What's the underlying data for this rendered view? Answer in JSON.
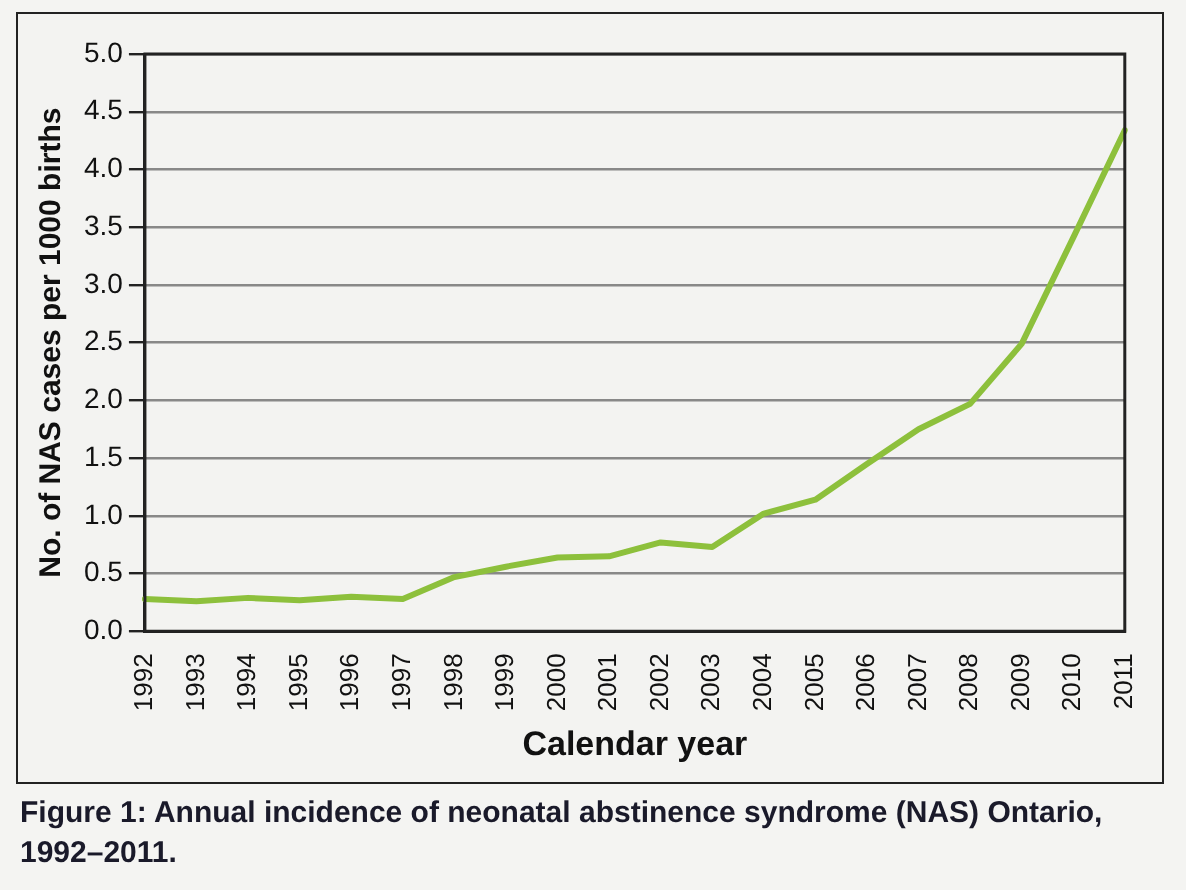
{
  "chart_data": {
    "type": "line",
    "xlabel": "Calendar year",
    "ylabel": "No. of NAS cases per 1000 births",
    "categories": [
      "1992",
      "1993",
      "1994",
      "1995",
      "1996",
      "1997",
      "1998",
      "1999",
      "2000",
      "2001",
      "2002",
      "2003",
      "2004",
      "2005",
      "2006",
      "2007",
      "2008",
      "2009",
      "2010",
      "2011"
    ],
    "series": [
      {
        "color": "#8dc03c",
        "values": [
          0.28,
          0.26,
          0.29,
          0.27,
          0.3,
          0.28,
          0.47,
          0.56,
          0.64,
          0.65,
          0.77,
          0.73,
          1.02,
          1.14,
          1.45,
          1.75,
          1.97,
          2.49,
          3.41,
          4.34
        ]
      }
    ],
    "ylim": [
      0,
      5
    ],
    "yticks": [
      {
        "value": 0,
        "label": "0.0"
      },
      {
        "value": 0.5,
        "label": "0.5"
      },
      {
        "value": 1,
        "label": "1.0"
      },
      {
        "value": 1.5,
        "label": "1.5"
      },
      {
        "value": 2,
        "label": "2.0"
      },
      {
        "value": 2.5,
        "label": "2.5"
      },
      {
        "value": 3,
        "label": "3.0"
      },
      {
        "value": 3.5,
        "label": "3.5"
      },
      {
        "value": 4,
        "label": "4.0"
      },
      {
        "value": 4.5,
        "label": "4.5"
      },
      {
        "value": 5,
        "label": "5.0"
      }
    ],
    "grid": "y",
    "legend": false,
    "marker": "none",
    "line_style": "solid",
    "annotations": [
      "Figure 1: Annual incidence of neonatal abstinence syndrome (NAS) Ontario, 1992–2011."
    ]
  }
}
